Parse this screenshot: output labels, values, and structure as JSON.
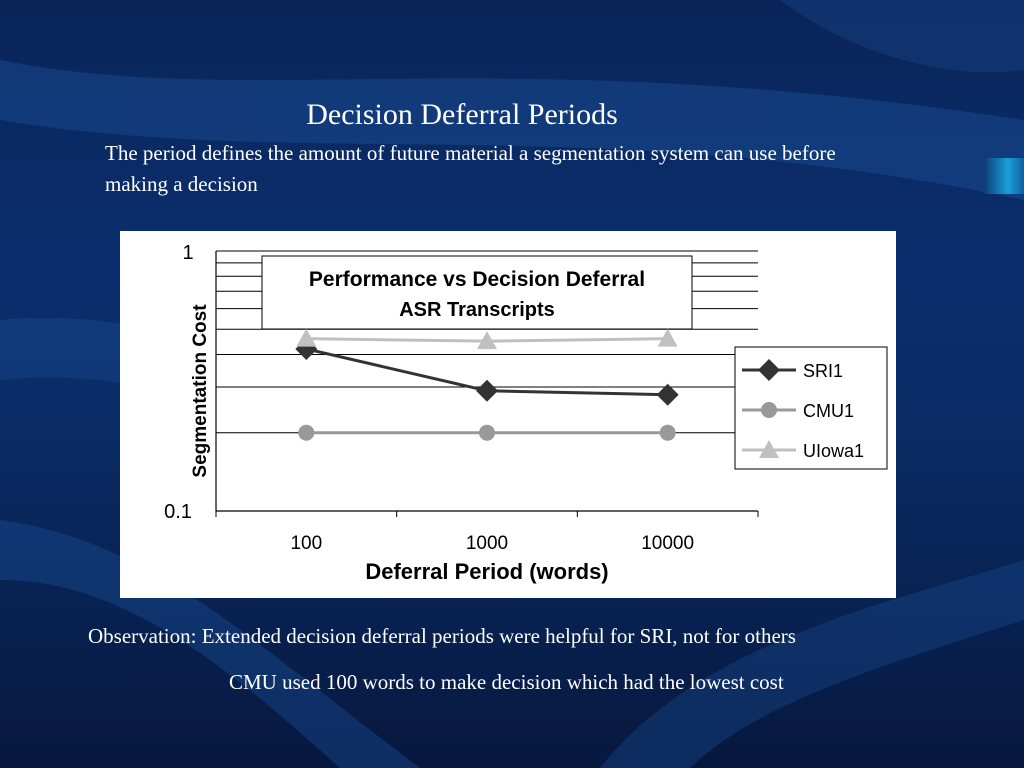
{
  "slide": {
    "title": "Decision Deferral Periods",
    "subtitle": "The period defines the amount of future material a segmentation system can use before making a decision",
    "observation": "Observation: Extended decision deferral periods were helpful for SRI, not for others",
    "note": "CMU used 100 words to make decision which had the lowest cost"
  },
  "chart_data": {
    "type": "line",
    "title": "Performance vs Decision Deferral",
    "subtitle": "ASR Transcripts",
    "xlabel": "Deferral Period (words)",
    "ylabel": "Segmentation Cost",
    "y_scale": "log",
    "ylim": [
      0.1,
      1
    ],
    "y_tick_labels": [
      "1",
      "0.1"
    ],
    "categories": [
      "100",
      "1000",
      "10000"
    ],
    "grid": true,
    "legend_position": "right",
    "series": [
      {
        "name": "SRI1",
        "marker": "diamond",
        "color": "#333333",
        "values": [
          0.42,
          0.29,
          0.28
        ]
      },
      {
        "name": "CMU1",
        "marker": "circle",
        "color": "#999999",
        "values": [
          0.2,
          0.2,
          0.2
        ]
      },
      {
        "name": "UIowa1",
        "marker": "triangle",
        "color": "#c0c0c0",
        "values": [
          0.46,
          0.45,
          0.46
        ]
      }
    ],
    "legend_labels": [
      "SRI1",
      "CMU1",
      "UIowa1"
    ]
  },
  "colors": {
    "background": "#0b2f6e",
    "text": "#ffffff",
    "accent_tab": "#1aa0d8"
  }
}
